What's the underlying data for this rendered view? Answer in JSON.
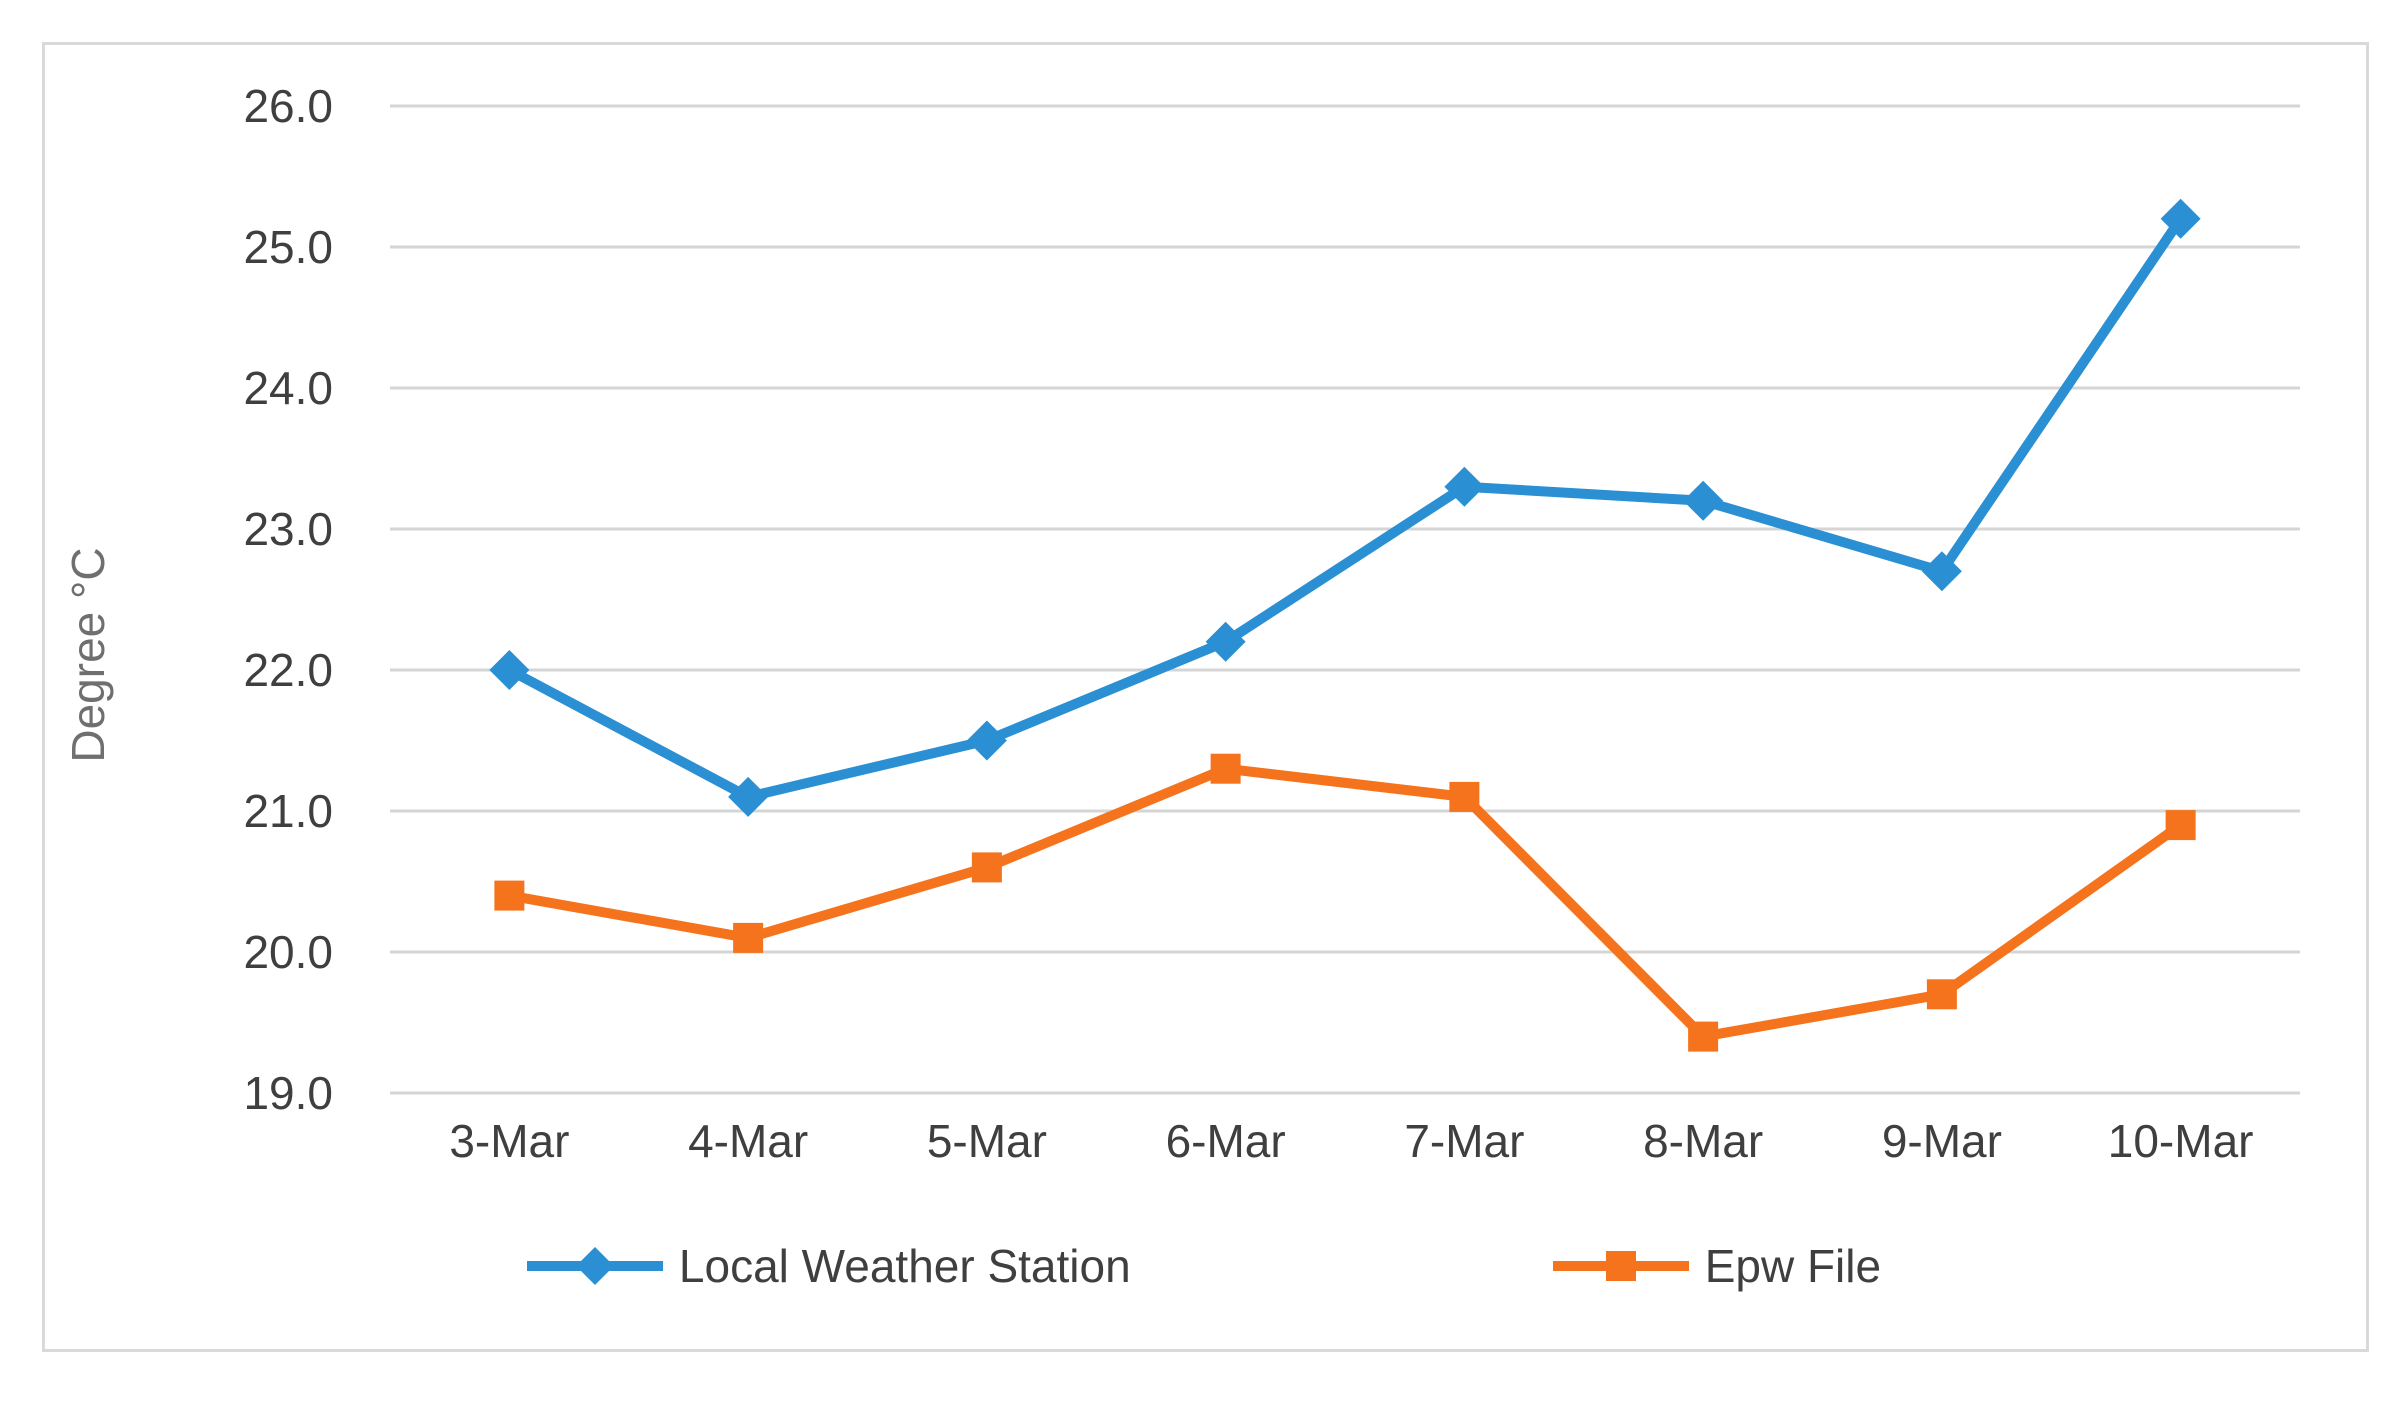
{
  "chart_data": {
    "type": "line",
    "categories": [
      "3-Mar",
      "4-Mar",
      "5-Mar",
      "6-Mar",
      "7-Mar",
      "8-Mar",
      "9-Mar",
      "10-Mar"
    ],
    "series": [
      {
        "name": "Local Weather Station",
        "marker": "diamond",
        "color": "#2A8FD3",
        "values": [
          22.0,
          21.1,
          21.5,
          22.2,
          23.3,
          23.2,
          22.7,
          25.2
        ]
      },
      {
        "name": "Epw File",
        "marker": "square",
        "color": "#F4731C",
        "values": [
          20.4,
          20.1,
          20.6,
          21.3,
          21.1,
          19.4,
          19.7,
          20.9
        ]
      }
    ],
    "title": "",
    "xlabel": "",
    "ylabel": "Degree °C",
    "ylim": [
      19.0,
      26.0
    ],
    "y_tick_step": 1.0,
    "y_tick_labels": [
      "19.0",
      "20.0",
      "21.0",
      "22.0",
      "23.0",
      "24.0",
      "25.0",
      "26.0"
    ],
    "grid": "horizontal",
    "legend_position": "bottom"
  },
  "colors": {
    "background": "#FFFFFF",
    "frame_border": "#D9D9D9",
    "gridline": "#D5D5D5",
    "tick_text": "#3F3F3F",
    "axis_title_text": "#6F6F6F",
    "legend_text": "#3F3F3F"
  }
}
